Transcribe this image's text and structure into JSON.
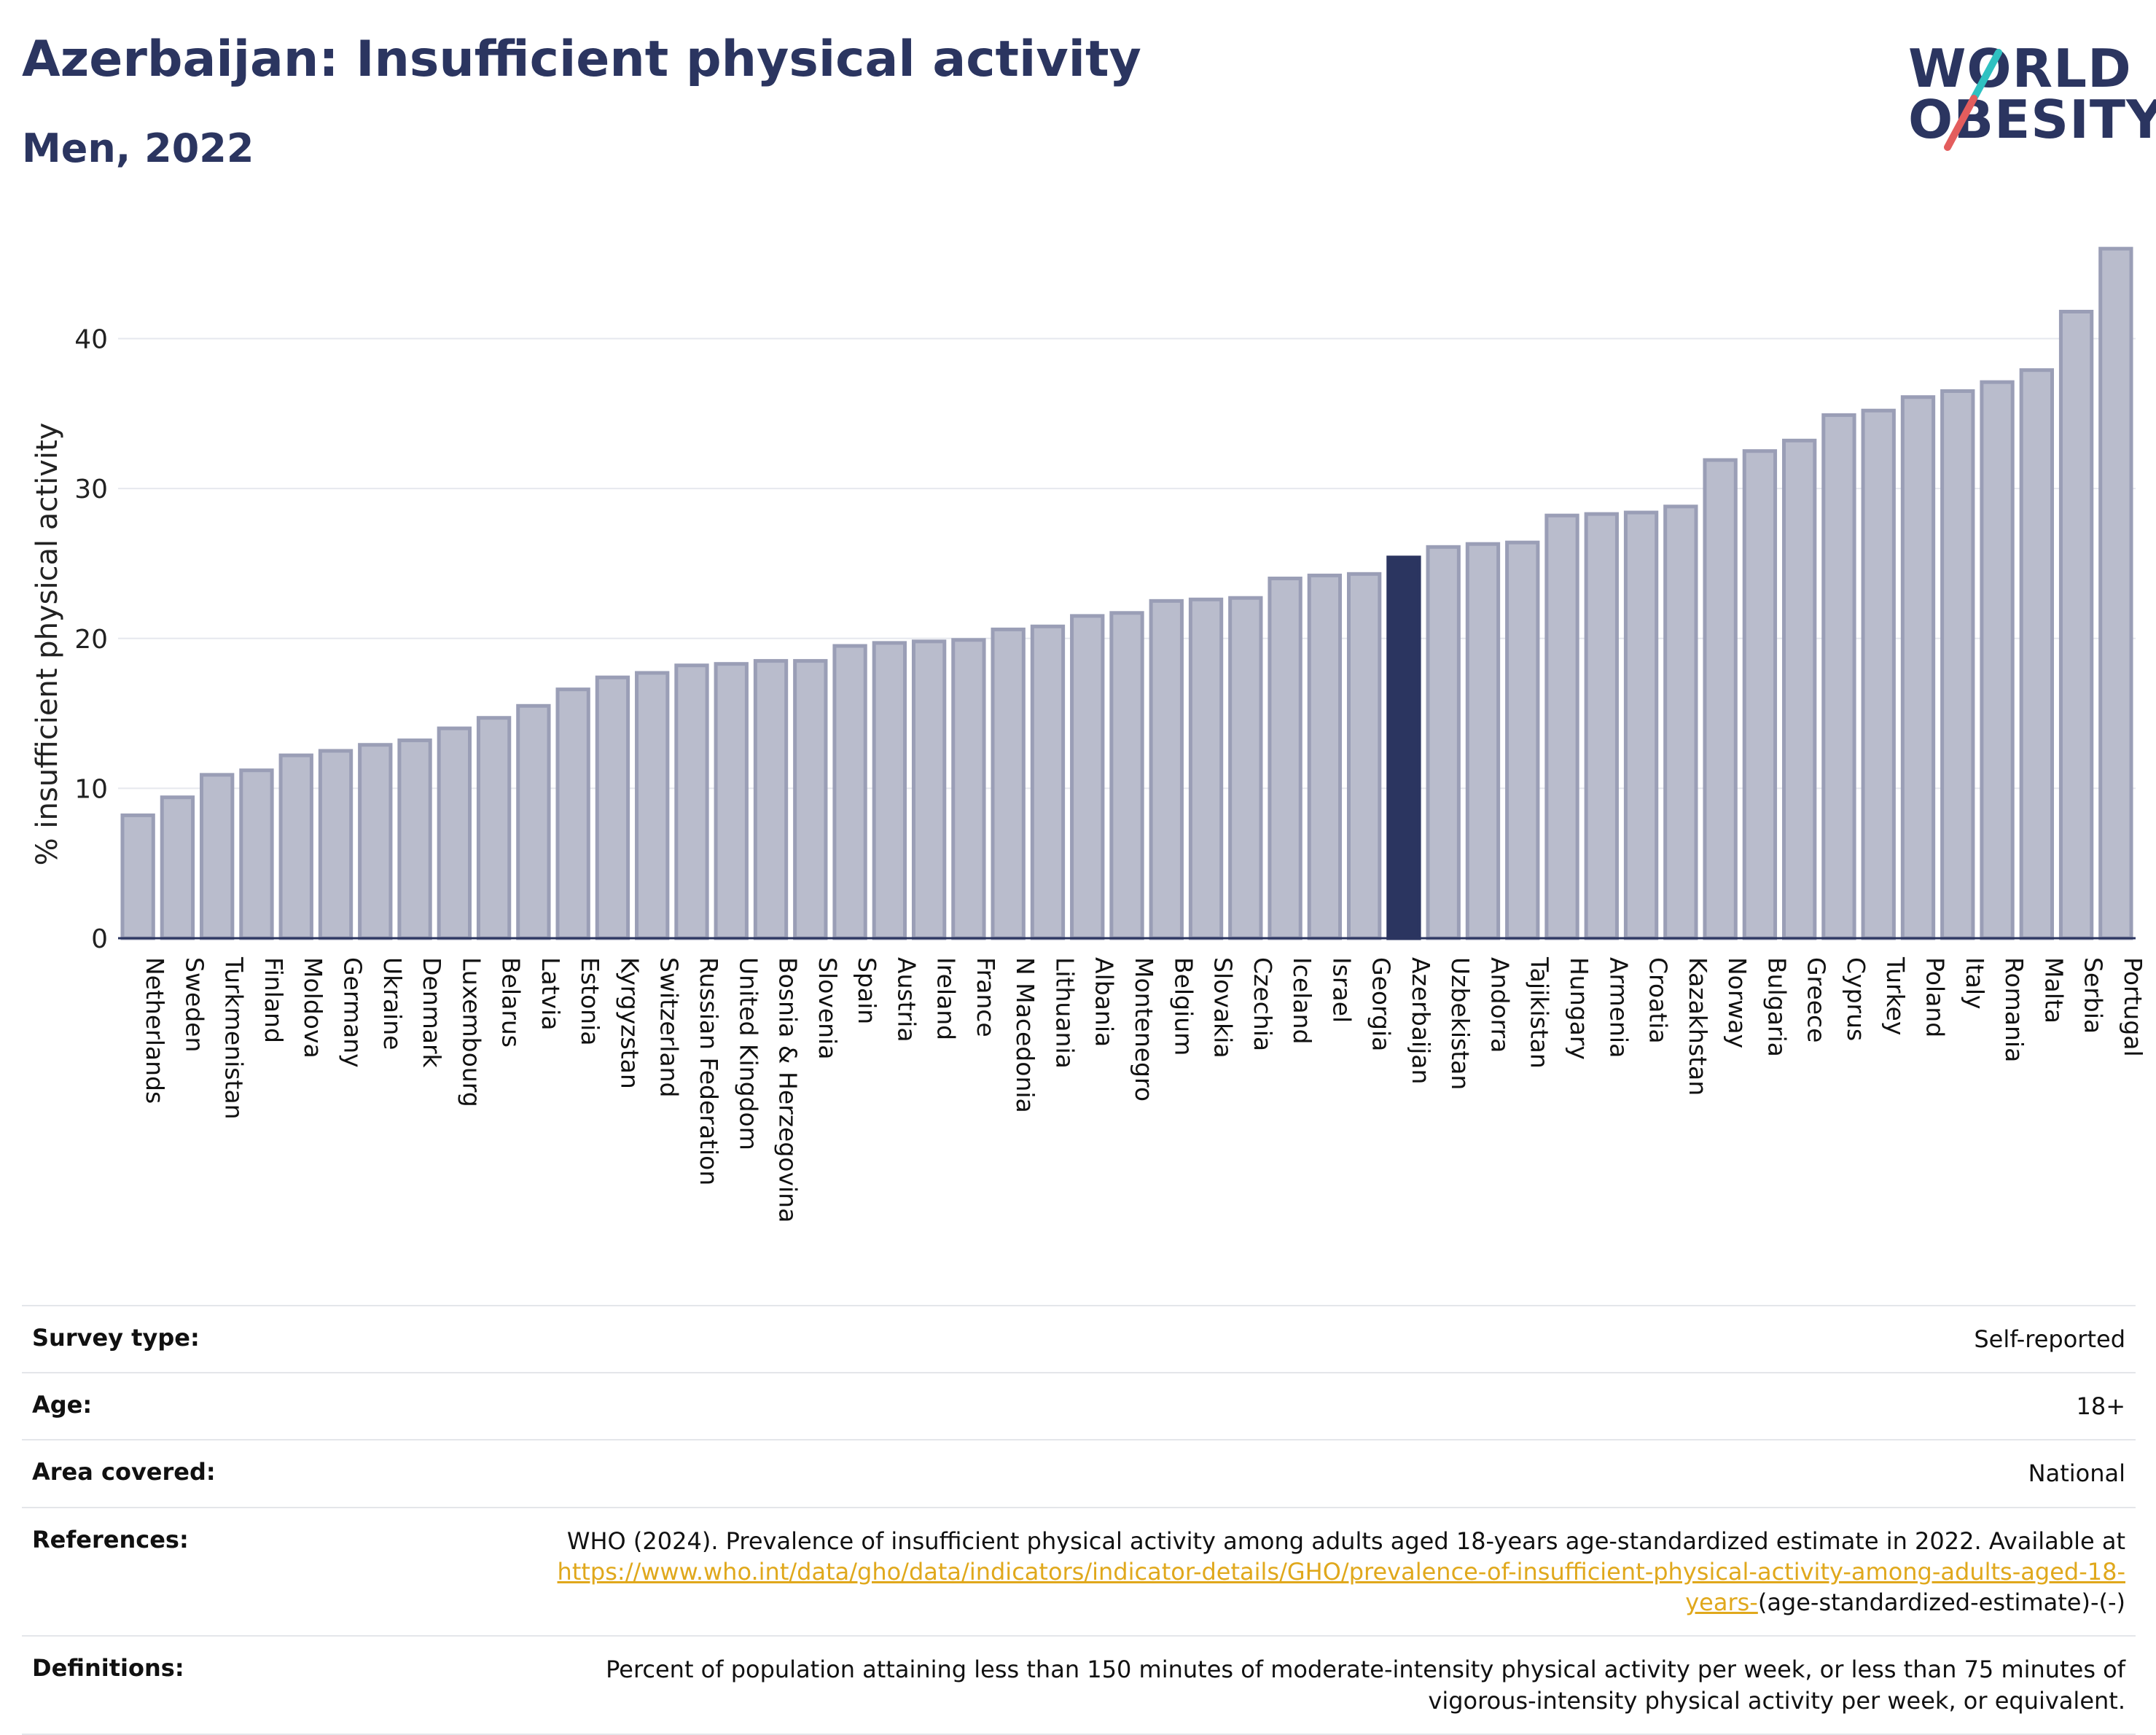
{
  "header": {
    "title": "Azerbaijan: Insufficient physical activity",
    "subtitle": "Men, 2022",
    "logo_line1": "WORLD",
    "logo_line2": "OBESITY"
  },
  "colors": {
    "highlight": "#2b3560",
    "bar_fill": "#b9bccc",
    "bar_stroke": "#9a9eb6",
    "slash_teal": "#2fc1c1",
    "slash_red": "#e35d5d",
    "link": "#e0a81c"
  },
  "chart_data": {
    "type": "bar",
    "title": "Azerbaijan: Insufficient physical activity",
    "subtitle": "Men, 2022",
    "ylabel": "% insufficient physical activity",
    "xlabel": "",
    "ylim": [
      0,
      48
    ],
    "yticks": [
      0,
      10,
      20,
      30,
      40
    ],
    "grid": true,
    "highlight": "Azerbaijan",
    "categories": [
      "Netherlands",
      "Sweden",
      "Turkmenistan",
      "Finland",
      "Moldova",
      "Germany",
      "Ukraine",
      "Denmark",
      "Luxembourg",
      "Belarus",
      "Latvia",
      "Estonia",
      "Kyrgyzstan",
      "Switzerland",
      "Russian Federation",
      "United Kingdom",
      "Bosnia & Herzegovina",
      "Slovenia",
      "Spain",
      "Austria",
      "Ireland",
      "France",
      "N Macedonia",
      "Lithuania",
      "Albania",
      "Montenegro",
      "Belgium",
      "Slovakia",
      "Czechia",
      "Iceland",
      "Israel",
      "Georgia",
      "Azerbaijan",
      "Uzbekistan",
      "Andorra",
      "Tajikistan",
      "Hungary",
      "Armenia",
      "Croatia",
      "Kazakhstan",
      "Norway",
      "Bulgaria",
      "Greece",
      "Cyprus",
      "Turkey",
      "Poland",
      "Italy",
      "Romania",
      "Malta",
      "Serbia",
      "Portugal"
    ],
    "values": [
      8.2,
      9.4,
      10.9,
      11.2,
      12.2,
      12.5,
      12.9,
      13.2,
      14.0,
      14.7,
      15.5,
      16.6,
      17.4,
      17.7,
      18.2,
      18.3,
      18.5,
      18.5,
      19.5,
      19.7,
      19.8,
      19.9,
      20.6,
      20.8,
      21.5,
      21.7,
      22.5,
      22.6,
      22.7,
      24.0,
      24.2,
      24.3,
      25.4,
      26.1,
      26.3,
      26.4,
      28.2,
      28.3,
      28.4,
      28.8,
      31.9,
      32.5,
      33.2,
      34.9,
      35.2,
      36.1,
      36.5,
      37.1,
      37.9,
      41.8,
      46.0
    ]
  },
  "meta": {
    "survey_label": "Survey type:",
    "survey_value": "Self-reported",
    "age_label": "Age:",
    "age_value": "18+",
    "area_label": "Area covered:",
    "area_value": "National",
    "ref_label": "References:",
    "ref_text": "WHO (2024). Prevalence of insufficient physical activity among adults aged 18-years age-standardized estimate in 2022. Available at",
    "ref_link": "https://www.who.int/data/gho/data/indicators/indicator-details/GHO/prevalence-of-insufficient-physical-activity-among-adults-aged-18-years-",
    "ref_suffix": "(age-standardized-estimate)-(-)",
    "def_label": "Definitions:",
    "def_value": "Percent of population attaining less than 150 minutes of moderate-intensity physical activity per week, or less than 75 minutes of vigorous-intensity physical activity per week, or equivalent."
  }
}
